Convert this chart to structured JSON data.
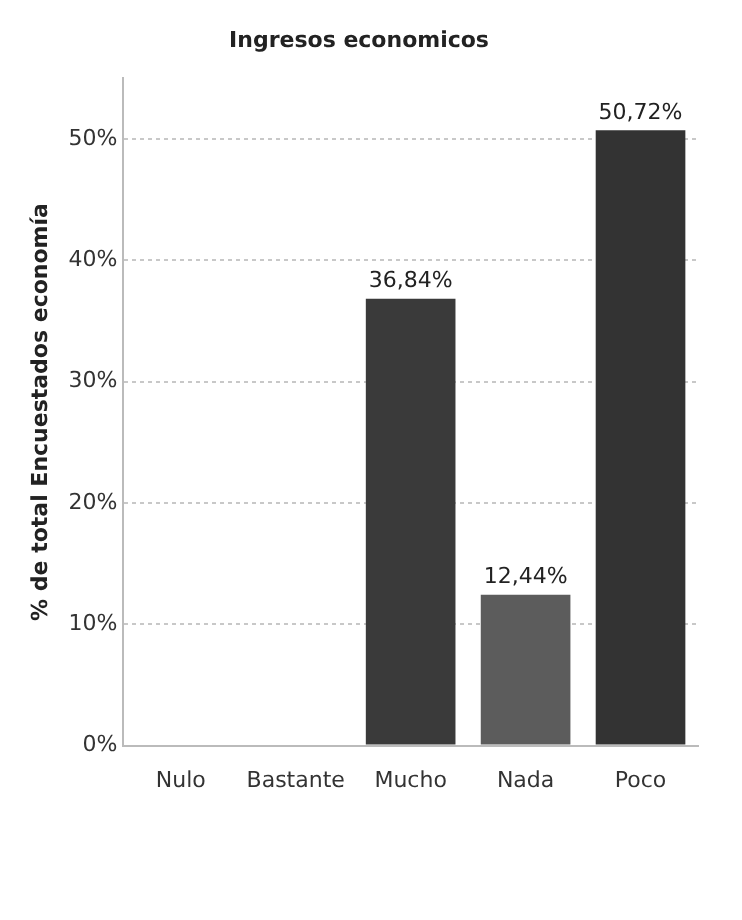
{
  "chart_data": {
    "type": "bar",
    "title": "Ingresos economicos",
    "ylabel": "% de total Encuestados economía",
    "categories": [
      "Nulo",
      "Bastante",
      "Mucho",
      "Nada",
      "Poco"
    ],
    "values": [
      0,
      0,
      36.84,
      12.44,
      50.72
    ],
    "colors": [
      "#3a3a3a",
      "#3a3a3a",
      "#3a3a3a",
      "#5c5c5c",
      "#333333"
    ],
    "value_labels": [
      null,
      null,
      "36,84%",
      "12,44%",
      "50,72%"
    ],
    "ylim": [
      0,
      55
    ],
    "yticks": [
      {
        "value": 0,
        "label": "0%"
      },
      {
        "value": 10,
        "label": "10%"
      },
      {
        "value": 20,
        "label": "20%"
      },
      {
        "value": 30,
        "label": "30%"
      },
      {
        "value": 40,
        "label": "40%"
      },
      {
        "value": 50,
        "label": "50%"
      }
    ],
    "grid": "y",
    "legend": false
  }
}
